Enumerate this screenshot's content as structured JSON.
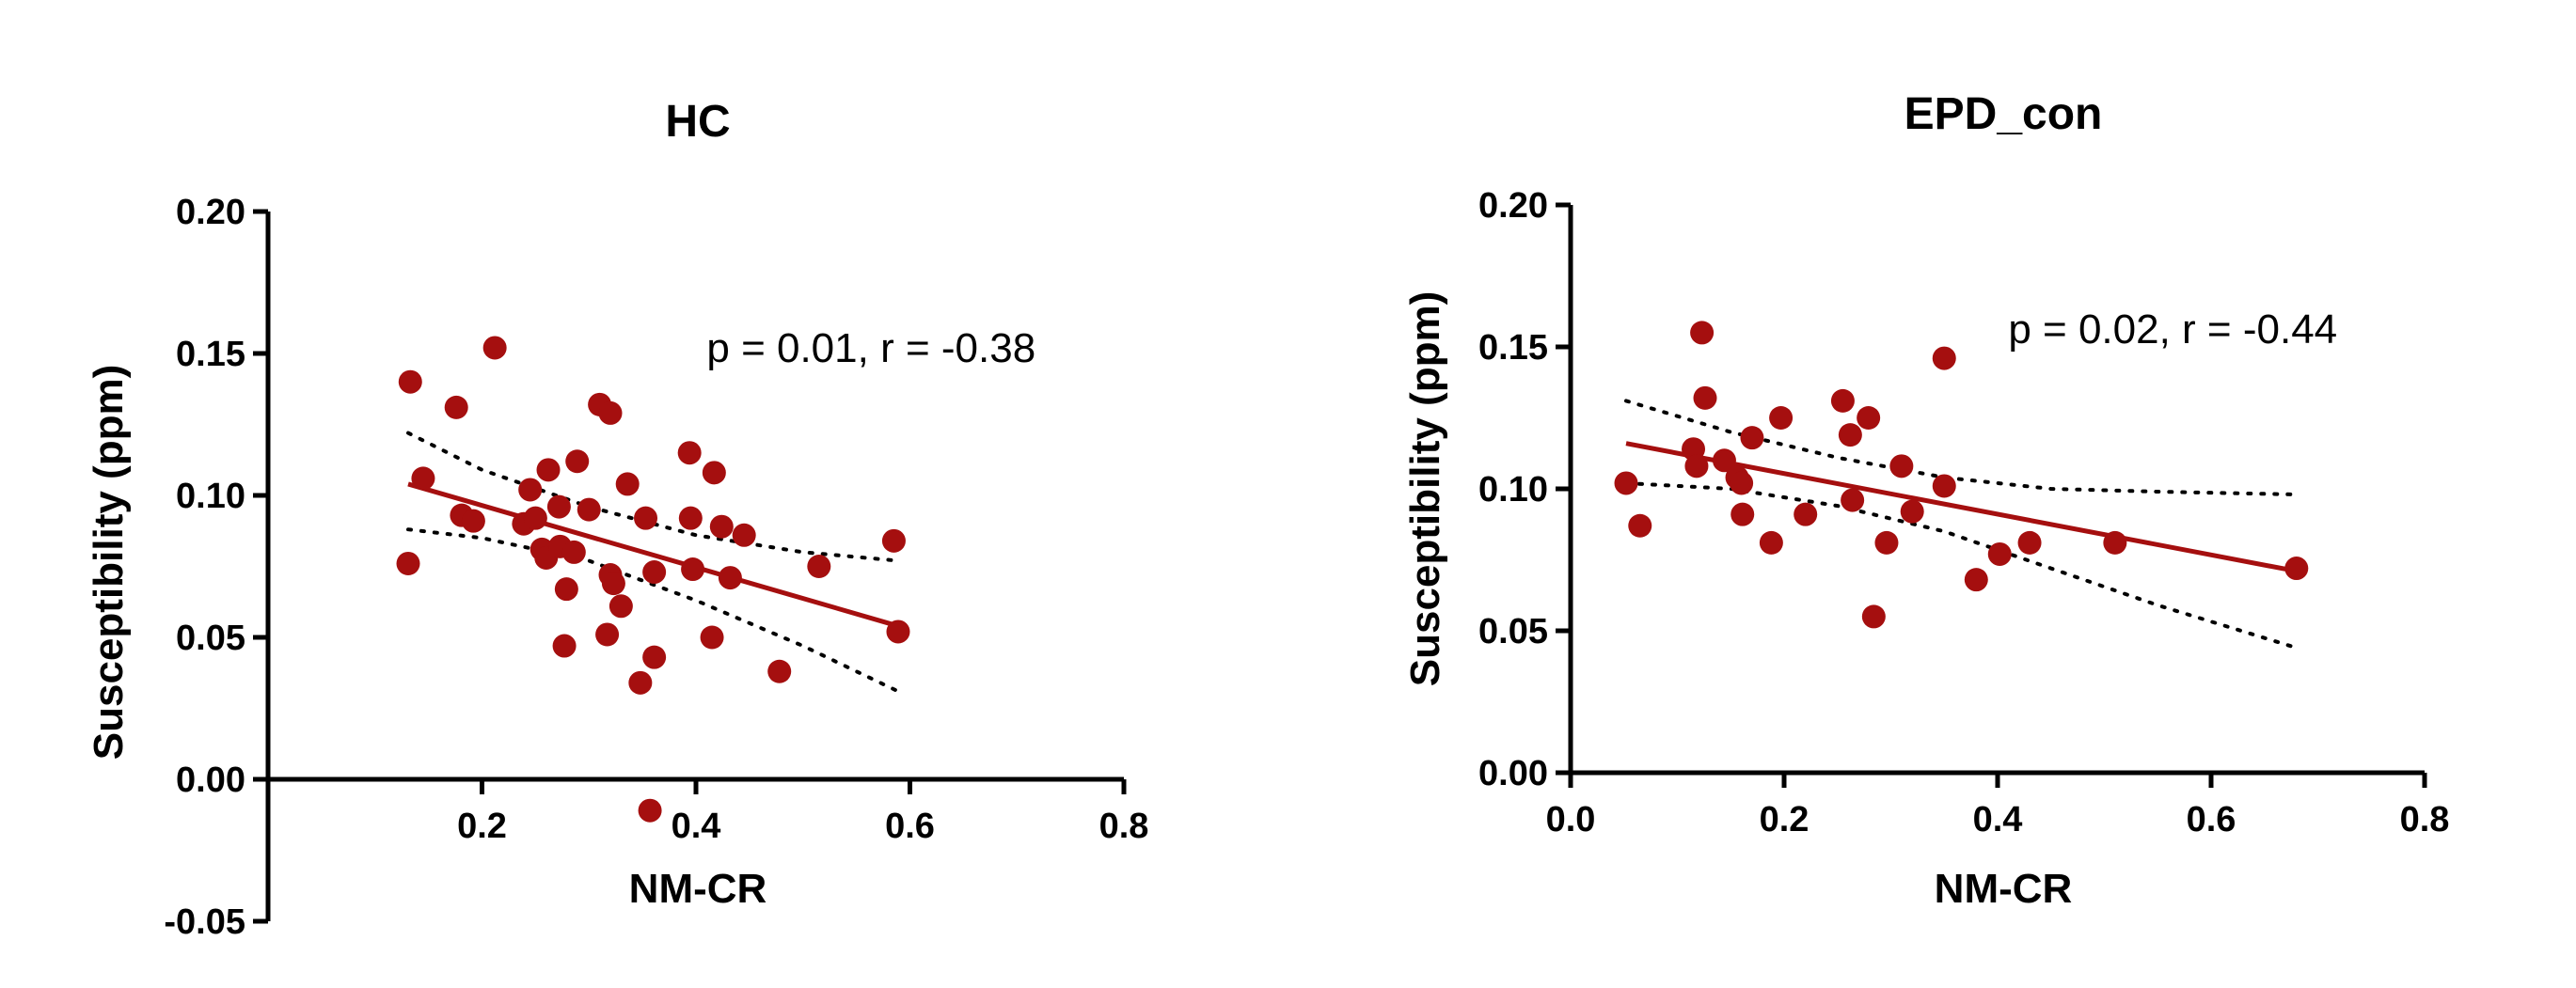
{
  "chart_data": [
    {
      "type": "scatter",
      "title": "HC",
      "xlabel": "NM-CR",
      "ylabel": "Susceptibility (ppm)",
      "annotation": "p = 0.01, r = -0.38",
      "xlim": [
        0.0,
        0.8
      ],
      "ylim": [
        -0.05,
        0.2
      ],
      "xticks": [
        0.2,
        0.4,
        0.6,
        0.8
      ],
      "xtick_labels": [
        "0.2",
        "0.4",
        "0.6",
        "0.8"
      ],
      "yticks": [
        -0.05,
        0.0,
        0.05,
        0.1,
        0.15,
        0.2
      ],
      "ytick_labels": [
        "-0.05",
        "0.00",
        "0.05",
        "0.10",
        "0.15",
        "0.20"
      ],
      "points_color": "#a50f0f",
      "line_color": "#a50f0f",
      "points": [
        [
          0.133,
          0.14
        ],
        [
          0.131,
          0.076
        ],
        [
          0.145,
          0.106
        ],
        [
          0.176,
          0.131
        ],
        [
          0.181,
          0.093
        ],
        [
          0.192,
          0.091
        ],
        [
          0.212,
          0.152
        ],
        [
          0.239,
          0.09
        ],
        [
          0.245,
          0.102
        ],
        [
          0.25,
          0.092
        ],
        [
          0.256,
          0.081
        ],
        [
          0.26,
          0.078
        ],
        [
          0.262,
          0.109
        ],
        [
          0.272,
          0.096
        ],
        [
          0.273,
          0.082
        ],
        [
          0.277,
          0.047
        ],
        [
          0.279,
          0.067
        ],
        [
          0.286,
          0.08
        ],
        [
          0.289,
          0.112
        ],
        [
          0.3,
          0.095
        ],
        [
          0.31,
          0.132
        ],
        [
          0.32,
          0.129
        ],
        [
          0.317,
          0.051
        ],
        [
          0.32,
          0.072
        ],
        [
          0.323,
          0.069
        ],
        [
          0.33,
          0.061
        ],
        [
          0.336,
          0.104
        ],
        [
          0.348,
          0.034
        ],
        [
          0.353,
          0.092
        ],
        [
          0.357,
          -0.011
        ],
        [
          0.361,
          0.043
        ],
        [
          0.361,
          0.073
        ],
        [
          0.394,
          0.115
        ],
        [
          0.395,
          0.092
        ],
        [
          0.397,
          0.074
        ],
        [
          0.415,
          0.05
        ],
        [
          0.417,
          0.108
        ],
        [
          0.424,
          0.089
        ],
        [
          0.432,
          0.071
        ],
        [
          0.445,
          0.086
        ],
        [
          0.478,
          0.038
        ],
        [
          0.515,
          0.075
        ],
        [
          0.585,
          0.084
        ],
        [
          0.589,
          0.052
        ]
      ],
      "fit_line": {
        "x": [
          0.131,
          0.589
        ],
        "y": [
          0.104,
          0.054
        ]
      },
      "ci_upper": [
        [
          0.131,
          0.122
        ],
        [
          0.2,
          0.109
        ],
        [
          0.3,
          0.096
        ],
        [
          0.4,
          0.086
        ],
        [
          0.5,
          0.08
        ],
        [
          0.589,
          0.077
        ]
      ],
      "ci_lower": [
        [
          0.131,
          0.088
        ],
        [
          0.2,
          0.085
        ],
        [
          0.3,
          0.077
        ],
        [
          0.4,
          0.063
        ],
        [
          0.5,
          0.047
        ],
        [
          0.589,
          0.031
        ]
      ]
    },
    {
      "type": "scatter",
      "title": "EPD_con",
      "xlabel": "NM-CR",
      "ylabel": "Susceptibility (ppm)",
      "annotation": "p = 0.02, r = -0.44",
      "xlim": [
        0.0,
        0.8
      ],
      "ylim": [
        0.0,
        0.2
      ],
      "xticks": [
        0.0,
        0.2,
        0.4,
        0.6,
        0.8
      ],
      "xtick_labels": [
        "0.0",
        "0.2",
        "0.4",
        "0.6",
        "0.8"
      ],
      "yticks": [
        0.0,
        0.05,
        0.1,
        0.15,
        0.2
      ],
      "ytick_labels": [
        "0.00",
        "0.05",
        "0.10",
        "0.15",
        "0.20"
      ],
      "points_color": "#a50f0f",
      "line_color": "#a50f0f",
      "points": [
        [
          0.052,
          0.102
        ],
        [
          0.065,
          0.087
        ],
        [
          0.115,
          0.114
        ],
        [
          0.118,
          0.108
        ],
        [
          0.123,
          0.155
        ],
        [
          0.126,
          0.132
        ],
        [
          0.144,
          0.11
        ],
        [
          0.156,
          0.104
        ],
        [
          0.16,
          0.102
        ],
        [
          0.161,
          0.091
        ],
        [
          0.17,
          0.118
        ],
        [
          0.188,
          0.081
        ],
        [
          0.197,
          0.125
        ],
        [
          0.22,
          0.091
        ],
        [
          0.255,
          0.131
        ],
        [
          0.262,
          0.119
        ],
        [
          0.264,
          0.096
        ],
        [
          0.279,
          0.125
        ],
        [
          0.284,
          0.055
        ],
        [
          0.296,
          0.081
        ],
        [
          0.31,
          0.108
        ],
        [
          0.32,
          0.092
        ],
        [
          0.35,
          0.146
        ],
        [
          0.35,
          0.101
        ],
        [
          0.38,
          0.068
        ],
        [
          0.402,
          0.077
        ],
        [
          0.43,
          0.081
        ],
        [
          0.51,
          0.081
        ],
        [
          0.68,
          0.072
        ]
      ],
      "fit_line": {
        "x": [
          0.052,
          0.68
        ],
        "y": [
          0.116,
          0.071
        ]
      },
      "ci_upper": [
        [
          0.052,
          0.131
        ],
        [
          0.15,
          0.12
        ],
        [
          0.25,
          0.111
        ],
        [
          0.35,
          0.104
        ],
        [
          0.45,
          0.1
        ],
        [
          0.55,
          0.099
        ],
        [
          0.68,
          0.098
        ]
      ],
      "ci_lower": [
        [
          0.052,
          0.102
        ],
        [
          0.15,
          0.1
        ],
        [
          0.25,
          0.094
        ],
        [
          0.35,
          0.085
        ],
        [
          0.45,
          0.072
        ],
        [
          0.55,
          0.059
        ],
        [
          0.68,
          0.044
        ]
      ]
    }
  ]
}
